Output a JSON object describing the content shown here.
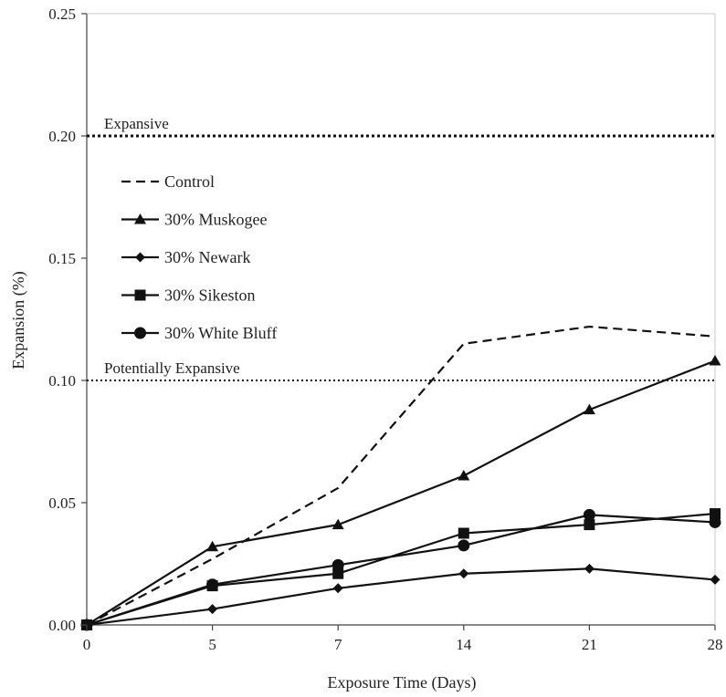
{
  "chart_data": {
    "type": "line",
    "xlabel": "Exposure Time (Days)",
    "ylabel": "Expansion (%)",
    "x": [
      0,
      5,
      7,
      14,
      21,
      28
    ],
    "x_tick_labels": [
      "0",
      "5",
      "7",
      "14",
      "21",
      "28"
    ],
    "x_scale": "categorical",
    "ylim": [
      0,
      0.25
    ],
    "y_ticks": [
      0,
      0.05,
      0.1,
      0.15,
      0.2,
      0.25
    ],
    "y_tick_labels": [
      "0.00",
      "0.05",
      "0.10",
      "0.15",
      "0.20",
      "0.25"
    ],
    "grid": false,
    "legend_position": "upper-left",
    "series": [
      {
        "name": "Control",
        "line_style": "dashed",
        "marker": "none",
        "values": [
          0.0,
          0.027,
          0.056,
          0.115,
          0.122,
          0.118
        ]
      },
      {
        "name": "30% Muskogee",
        "line_style": "solid",
        "marker": "triangle",
        "values": [
          0.0,
          0.032,
          0.041,
          0.061,
          0.088,
          0.108
        ]
      },
      {
        "name": "30% Newark",
        "line_style": "solid",
        "marker": "diamond",
        "values": [
          0.0,
          0.0065,
          0.015,
          0.021,
          0.023,
          0.0185
        ]
      },
      {
        "name": "30% Sikeston",
        "line_style": "solid",
        "marker": "square",
        "values": [
          0.0,
          0.016,
          0.021,
          0.0375,
          0.041,
          0.0455
        ]
      },
      {
        "name": "30% White Bluff",
        "line_style": "solid",
        "marker": "circle",
        "values": [
          0.0,
          0.0165,
          0.0245,
          0.0325,
          0.045,
          0.042
        ]
      }
    ],
    "reference_lines": [
      {
        "label": "Expansive",
        "y": 0.2,
        "style": "dotted-thick"
      },
      {
        "label": "Potentially Expansive",
        "y": 0.1,
        "style": "dotted"
      }
    ]
  }
}
